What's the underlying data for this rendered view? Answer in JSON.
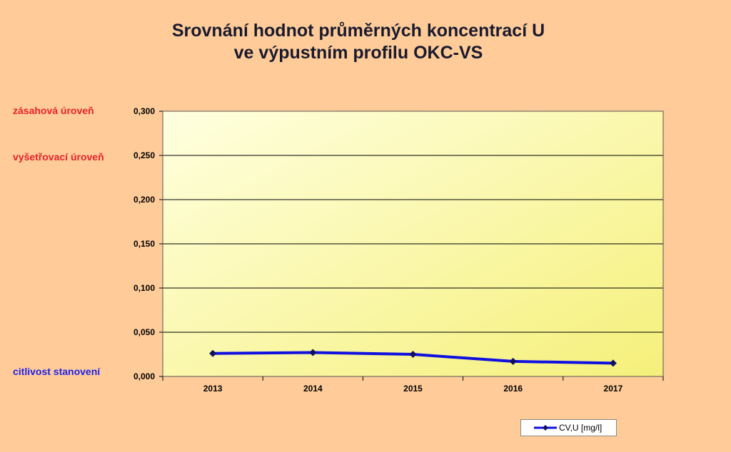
{
  "title": {
    "line1": "Srovnání hodnot průměrných koncentrací U",
    "line2": "ve výpustním profilu OKC-VS"
  },
  "side_labels": {
    "intervention": {
      "text": "zásahová úroveň",
      "color": "#E8202A"
    },
    "investigation": {
      "text": "vyšetřovací úroveň",
      "color": "#E8202A"
    },
    "detection": {
      "text": "citlivost stanovení",
      "color": "#1E1EE6"
    }
  },
  "chart_data": {
    "type": "line",
    "title": "Srovnání hodnot průměrných koncentrací U ve výpustním profilu OKC-VS",
    "xlabel": "",
    "ylabel": "",
    "categories": [
      "2013",
      "2014",
      "2015",
      "2016",
      "2017"
    ],
    "series": [
      {
        "name": "CV,U [mg/l]",
        "values": [
          0.026,
          0.027,
          0.025,
          0.017,
          0.015
        ],
        "color": "#1010E0"
      }
    ],
    "ylim": [
      0,
      0.3
    ],
    "yticks": [
      "0,000",
      "0,050",
      "0,100",
      "0,150",
      "0,200",
      "0,250",
      "0,300"
    ],
    "ytick_values": [
      0,
      0.05,
      0.1,
      0.15,
      0.2,
      0.25,
      0.3
    ],
    "grid": true,
    "legend_position": "bottom-right",
    "plot_background": [
      "#FFFFE0",
      "#F5F07A"
    ]
  }
}
